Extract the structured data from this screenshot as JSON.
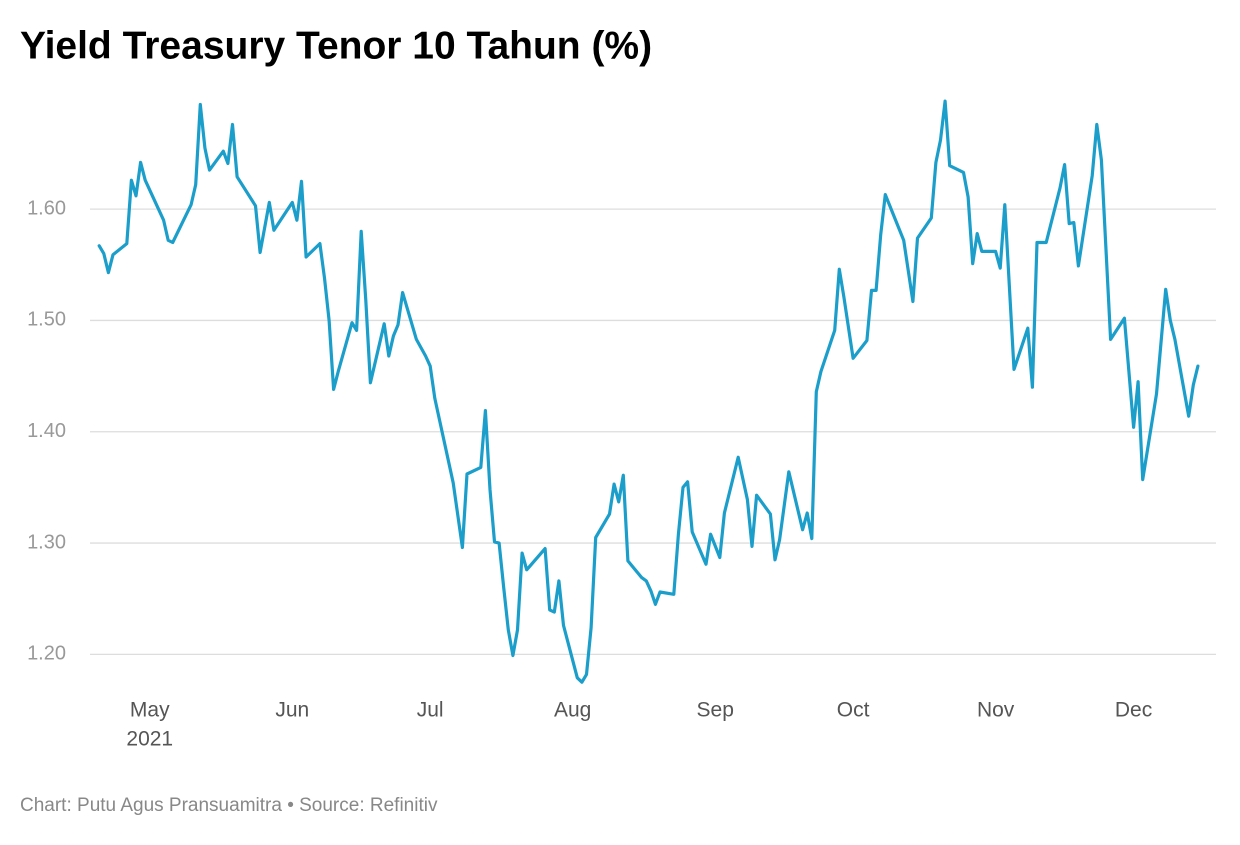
{
  "chart_data": {
    "type": "line",
    "title": "Yield Treasury Tenor 10 Tahun (%)",
    "source": "Chart: Putu Agus Pransuamitra • Source: Refinitiv",
    "year_label": "2021",
    "x": [
      110,
      111,
      112,
      113,
      116,
      117,
      118,
      119,
      120,
      124,
      125,
      126,
      130,
      131,
      132,
      133,
      134,
      137,
      138,
      139,
      140,
      144,
      145,
      147,
      148,
      152,
      153,
      154,
      155,
      158,
      159,
      160,
      161,
      162,
      165,
      166,
      167,
      168,
      169,
      172,
      173,
      174,
      175,
      176,
      179,
      181,
      182,
      183,
      187,
      189,
      190,
      193,
      194,
      195,
      196,
      197,
      198,
      199,
      200,
      201,
      202,
      203,
      207,
      208,
      209,
      210,
      211,
      214,
      215,
      216,
      217,
      218,
      221,
      222,
      223,
      224,
      225,
      228,
      229,
      230,
      231,
      232,
      235,
      236,
      237,
      238,
      239,
      242,
      243,
      245,
      246,
      249,
      251,
      252,
      253,
      256,
      257,
      258,
      260,
      263,
      264,
      265,
      266,
      267,
      270,
      271,
      272,
      274,
      277,
      278,
      279,
      280,
      281,
      285,
      287,
      288,
      291,
      292,
      293,
      294,
      295,
      298,
      299,
      300,
      301,
      302,
      305,
      306,
      307,
      309,
      312,
      313,
      314,
      316,
      319,
      320,
      321,
      322,
      323,
      326,
      327,
      328,
      330,
      333,
      335,
      336,
      337,
      340,
      342,
      343,
      344,
      347,
      348,
      349
    ],
    "series": [
      {
        "name": "Yield",
        "color": "#1c9ecb",
        "values": [
          1.567,
          1.56,
          1.543,
          1.559,
          1.569,
          1.626,
          1.612,
          1.642,
          1.626,
          1.59,
          1.572,
          1.57,
          1.604,
          1.622,
          1.694,
          1.655,
          1.635,
          1.652,
          1.641,
          1.676,
          1.629,
          1.603,
          1.561,
          1.606,
          1.581,
          1.606,
          1.59,
          1.625,
          1.557,
          1.569,
          1.538,
          1.5,
          1.438,
          1.454,
          1.498,
          1.491,
          1.58,
          1.518,
          1.444,
          1.497,
          1.468,
          1.486,
          1.496,
          1.525,
          1.483,
          1.468,
          1.459,
          1.43,
          1.354,
          1.296,
          1.362,
          1.368,
          1.419,
          1.348,
          1.301,
          1.3,
          1.26,
          1.222,
          1.199,
          1.222,
          1.291,
          1.276,
          1.295,
          1.24,
          1.238,
          1.266,
          1.226,
          1.179,
          1.175,
          1.182,
          1.224,
          1.305,
          1.326,
          1.353,
          1.337,
          1.361,
          1.284,
          1.269,
          1.266,
          1.257,
          1.245,
          1.256,
          1.254,
          1.308,
          1.35,
          1.355,
          1.31,
          1.281,
          1.308,
          1.287,
          1.327,
          1.377,
          1.339,
          1.297,
          1.343,
          1.326,
          1.285,
          1.303,
          1.364,
          1.312,
          1.327,
          1.304,
          1.436,
          1.454,
          1.491,
          1.546,
          1.521,
          1.466,
          1.482,
          1.527,
          1.527,
          1.577,
          1.613,
          1.572,
          1.517,
          1.574,
          1.592,
          1.642,
          1.662,
          1.697,
          1.639,
          1.633,
          1.611,
          1.551,
          1.578,
          1.562,
          1.562,
          1.547,
          1.604,
          1.456,
          1.493,
          1.44,
          1.57,
          1.57,
          1.619,
          1.64,
          1.587,
          1.588,
          1.549,
          1.63,
          1.676,
          1.644,
          1.483,
          1.502,
          1.404,
          1.445,
          1.357,
          1.434,
          1.528,
          1.5,
          1.483,
          1.414,
          1.442,
          1.459
        ]
      }
    ],
    "xlim": [
      108,
      352.5
    ],
    "xticks": [
      {
        "value": 121,
        "label": "May"
      },
      {
        "value": 152,
        "label": "Jun"
      },
      {
        "value": 182,
        "label": "Jul"
      },
      {
        "value": 213,
        "label": "Aug"
      },
      {
        "value": 244,
        "label": "Sep"
      },
      {
        "value": 274,
        "label": "Oct"
      },
      {
        "value": 305,
        "label": "Nov"
      },
      {
        "value": 335,
        "label": "Dec"
      }
    ],
    "ylim": [
      1.168,
      1.707
    ],
    "yticks": [
      {
        "value": 1.2,
        "label": "1.20"
      },
      {
        "value": 1.3,
        "label": "1.30"
      },
      {
        "value": 1.4,
        "label": "1.40"
      },
      {
        "value": 1.5,
        "label": "1.50"
      },
      {
        "value": 1.6,
        "label": "1.60"
      }
    ],
    "grid": true
  }
}
